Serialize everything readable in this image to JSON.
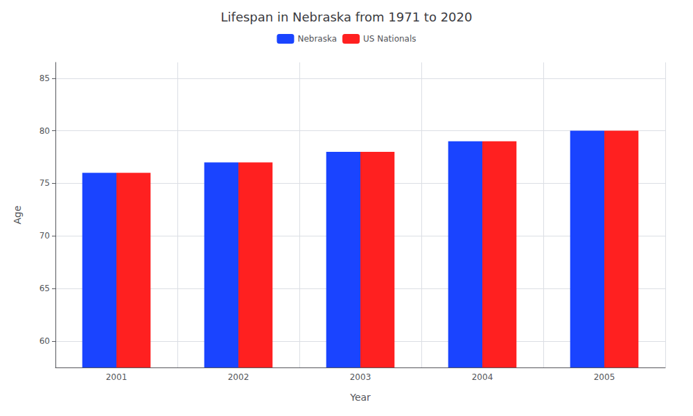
{
  "chart_data": {
    "type": "bar",
    "title": "Lifespan in Nebraska from 1971 to 2020",
    "xlabel": "Year",
    "ylabel": "Age",
    "categories": [
      "2001",
      "2002",
      "2003",
      "2004",
      "2005"
    ],
    "series": [
      {
        "name": "Nebraska",
        "color": "#1a44ff",
        "values": [
          76.0,
          77.0,
          78.0,
          79.0,
          80.0
        ]
      },
      {
        "name": "US Nationals",
        "color": "#ff2020",
        "values": [
          76.0,
          77.0,
          78.0,
          79.0,
          80.0
        ]
      }
    ],
    "ylim": [
      57.5,
      86.5
    ],
    "yticks": [
      60,
      65,
      70,
      75,
      80,
      85
    ],
    "grid": true,
    "legend": "top"
  }
}
